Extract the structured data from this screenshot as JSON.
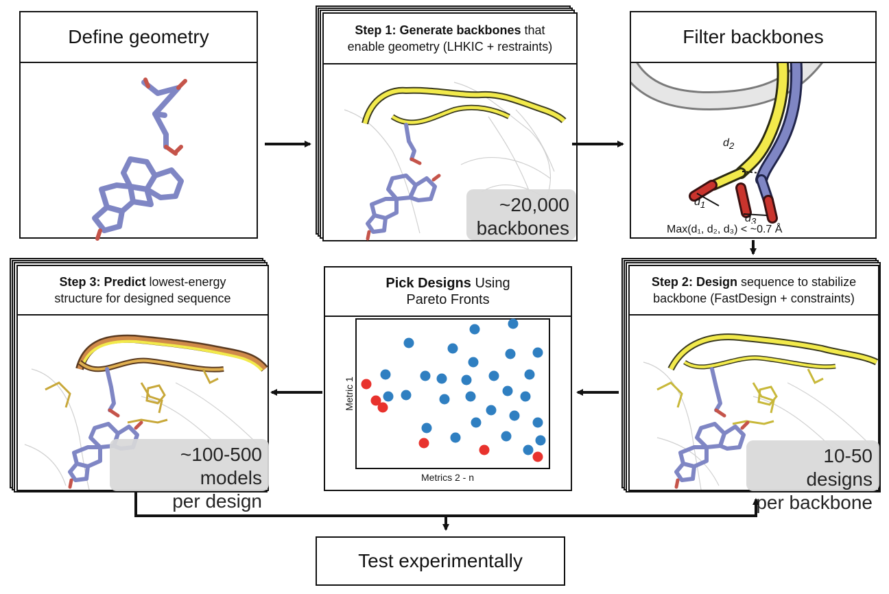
{
  "panels": {
    "define": {
      "title": "Define geometry"
    },
    "step1": {
      "step_label": "Step 1:",
      "bold": "Generate backbones",
      "rest1": " that",
      "line2": "enable geometry (LHKIC + restraints)",
      "badge_line1": "~20,000",
      "badge_line2": "backbones"
    },
    "filter": {
      "title": "Filter backbones",
      "d1": "d",
      "d1_sub": "1",
      "d2": "d",
      "d2_sub": "2",
      "d3": "d",
      "d3_sub": "3",
      "criterion": "Max(d₁, d₂, d₃) < ~0.7 Å"
    },
    "step2": {
      "step_label": "Step 2:",
      "bold": "Design",
      "rest1": " sequence to stabilize",
      "line2": "backbone (FastDesign + constraints)",
      "badge_line1": "10-50 designs",
      "badge_line2": "per backbone"
    },
    "pareto": {
      "bold": "Pick Designs",
      "rest1": " Using",
      "line2": "Pareto Fronts",
      "xlabel": "Metrics 2 - n",
      "ylabel": "Metric 1"
    },
    "step3": {
      "step_label": "Step 3:",
      "bold": "Predict",
      "rest1": " lowest-energy",
      "line2": "structure for designed sequence",
      "badge_line1": "~100-500 models",
      "badge_line2": "per design"
    }
  },
  "test": {
    "label": "Test experimentally"
  },
  "colors": {
    "blue_points": "#2f7fc1",
    "red_points": "#e8322d",
    "helix_yellow": "#f2ea4b",
    "ligand_blue": "#7f86c4"
  },
  "scatter": {
    "blue": [
      [
        596,
        500
      ],
      [
        692,
        480
      ],
      [
        748,
        472
      ],
      [
        660,
        508
      ],
      [
        744,
        516
      ],
      [
        784,
        514
      ],
      [
        690,
        528
      ],
      [
        562,
        546
      ],
      [
        620,
        548
      ],
      [
        644,
        552
      ],
      [
        680,
        554
      ],
      [
        720,
        548
      ],
      [
        772,
        546
      ],
      [
        566,
        578
      ],
      [
        592,
        576
      ],
      [
        648,
        582
      ],
      [
        686,
        578
      ],
      [
        740,
        570
      ],
      [
        766,
        578
      ],
      [
        716,
        598
      ],
      [
        750,
        606
      ],
      [
        694,
        616
      ],
      [
        784,
        616
      ],
      [
        622,
        624
      ],
      [
        664,
        638
      ],
      [
        738,
        636
      ],
      [
        788,
        642
      ],
      [
        770,
        656
      ]
    ],
    "red": [
      [
        534,
        560
      ],
      [
        548,
        584
      ],
      [
        558,
        594
      ],
      [
        618,
        646
      ],
      [
        706,
        656
      ],
      [
        784,
        666
      ]
    ]
  }
}
